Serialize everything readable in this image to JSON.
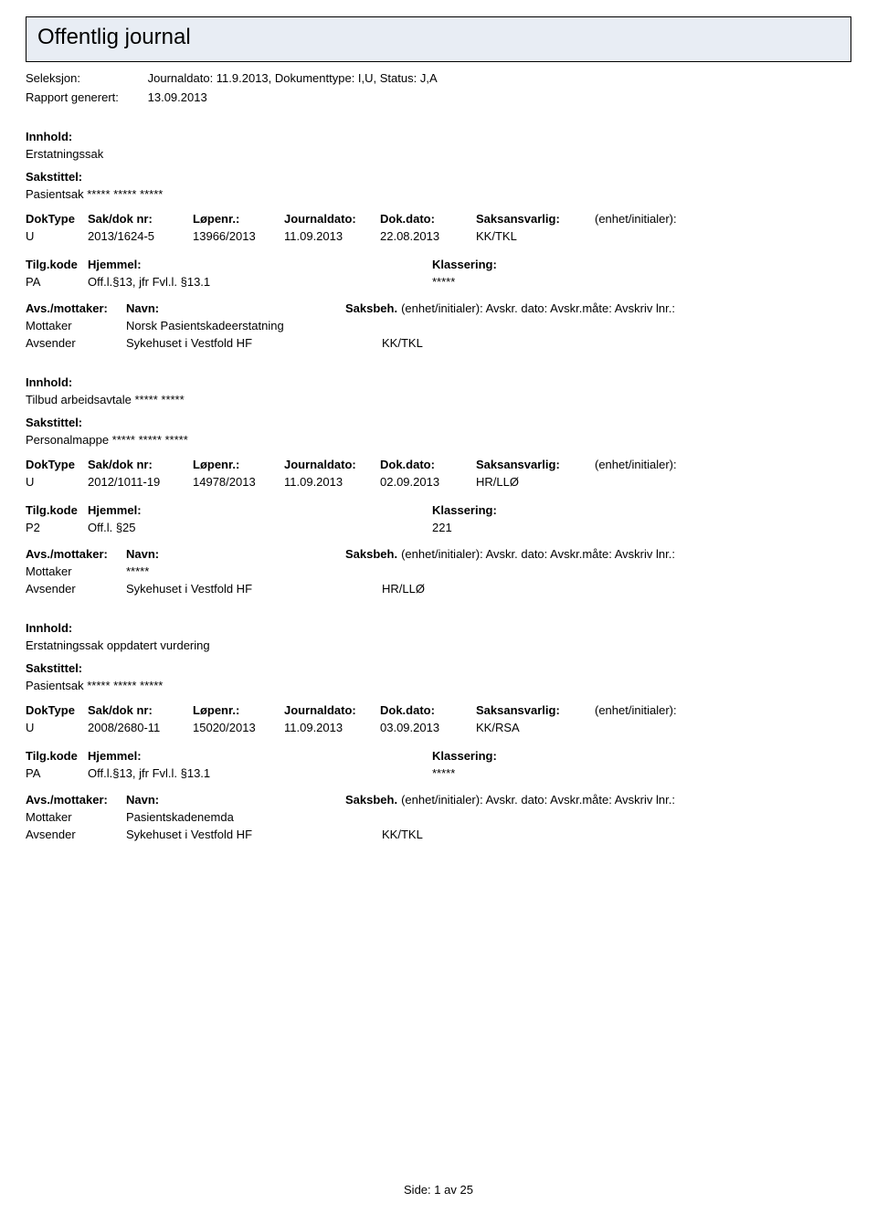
{
  "title": "Offentlig journal",
  "colors": {
    "title_bg": "#e8edf4",
    "border": "#000000",
    "text": "#000000",
    "page_bg": "#ffffff"
  },
  "meta": {
    "seleksjon_label": "Seleksjon:",
    "seleksjon_value": "Journaldato: 11.9.2013, Dokumenttype: I,U, Status: J,A",
    "rapport_label": "Rapport generert:",
    "rapport_value": "13.09.2013"
  },
  "labels": {
    "innhold": "Innhold:",
    "sakstittel": "Sakstittel:",
    "doktype": "DokType",
    "saknr": "Sak/dok nr:",
    "lopenr": "Løpenr.:",
    "journaldato": "Journaldato:",
    "dokdato": "Dok.dato:",
    "saksansvarlig": "Saksansvarlig:",
    "enhet_init": "(enhet/initialer):",
    "tilgkode": "Tilg.kode",
    "hjemmel": "Hjemmel:",
    "klassering": "Klassering:",
    "avs_mottaker": "Avs./mottaker:",
    "navn": "Navn:",
    "saksbeh": "Saksbeh.",
    "saksbeh_tail": "(enhet/initialer): Avskr. dato: Avskr.måte: Avskriv lnr.:",
    "mottaker": "Mottaker",
    "avsender": "Avsender"
  },
  "records": [
    {
      "innhold": "Erstatningssak",
      "sakstittel": "Pasientsak ***** ***** *****",
      "doktype": "U",
      "saknr": "2013/1624-5",
      "lopenr": "13966/2013",
      "journaldato": "11.09.2013",
      "dokdato": "22.08.2013",
      "saksansvarlig": "KK/TKL",
      "enhet_init": "",
      "tilgkode": "PA",
      "hjemmel": "Off.l.§13, jfr Fvl.l. §13.1",
      "klassering": "*****",
      "mottaker_name": "Norsk Pasientskadeerstatning",
      "mottaker_unit": "",
      "avsender_name": "Sykehuset i Vestfold HF",
      "avsender_unit": "KK/TKL"
    },
    {
      "innhold": "Tilbud arbeidsavtale ***** *****",
      "sakstittel": "Personalmappe ***** ***** *****",
      "doktype": "U",
      "saknr": "2012/1011-19",
      "lopenr": "14978/2013",
      "journaldato": "11.09.2013",
      "dokdato": "02.09.2013",
      "saksansvarlig": "HR/LLØ",
      "enhet_init": "",
      "tilgkode": "P2",
      "hjemmel": "Off.l. §25",
      "klassering": "221",
      "mottaker_name": "*****",
      "mottaker_unit": "",
      "avsender_name": "Sykehuset i Vestfold HF",
      "avsender_unit": "HR/LLØ"
    },
    {
      "innhold": "Erstatningssak oppdatert vurdering",
      "sakstittel": "Pasientsak ***** ***** *****",
      "doktype": "U",
      "saknr": "2008/2680-11",
      "lopenr": "15020/2013",
      "journaldato": "11.09.2013",
      "dokdato": "03.09.2013",
      "saksansvarlig": "KK/RSA",
      "enhet_init": "",
      "tilgkode": "PA",
      "hjemmel": "Off.l.§13, jfr Fvl.l. §13.1",
      "klassering": "*****",
      "mottaker_name": "Pasientskadenemda",
      "mottaker_unit": "",
      "avsender_name": "Sykehuset i Vestfold HF",
      "avsender_unit": "KK/TKL"
    }
  ],
  "footer": {
    "side_label": "Side:",
    "page_current": "1",
    "av": "av",
    "page_total": "25"
  }
}
